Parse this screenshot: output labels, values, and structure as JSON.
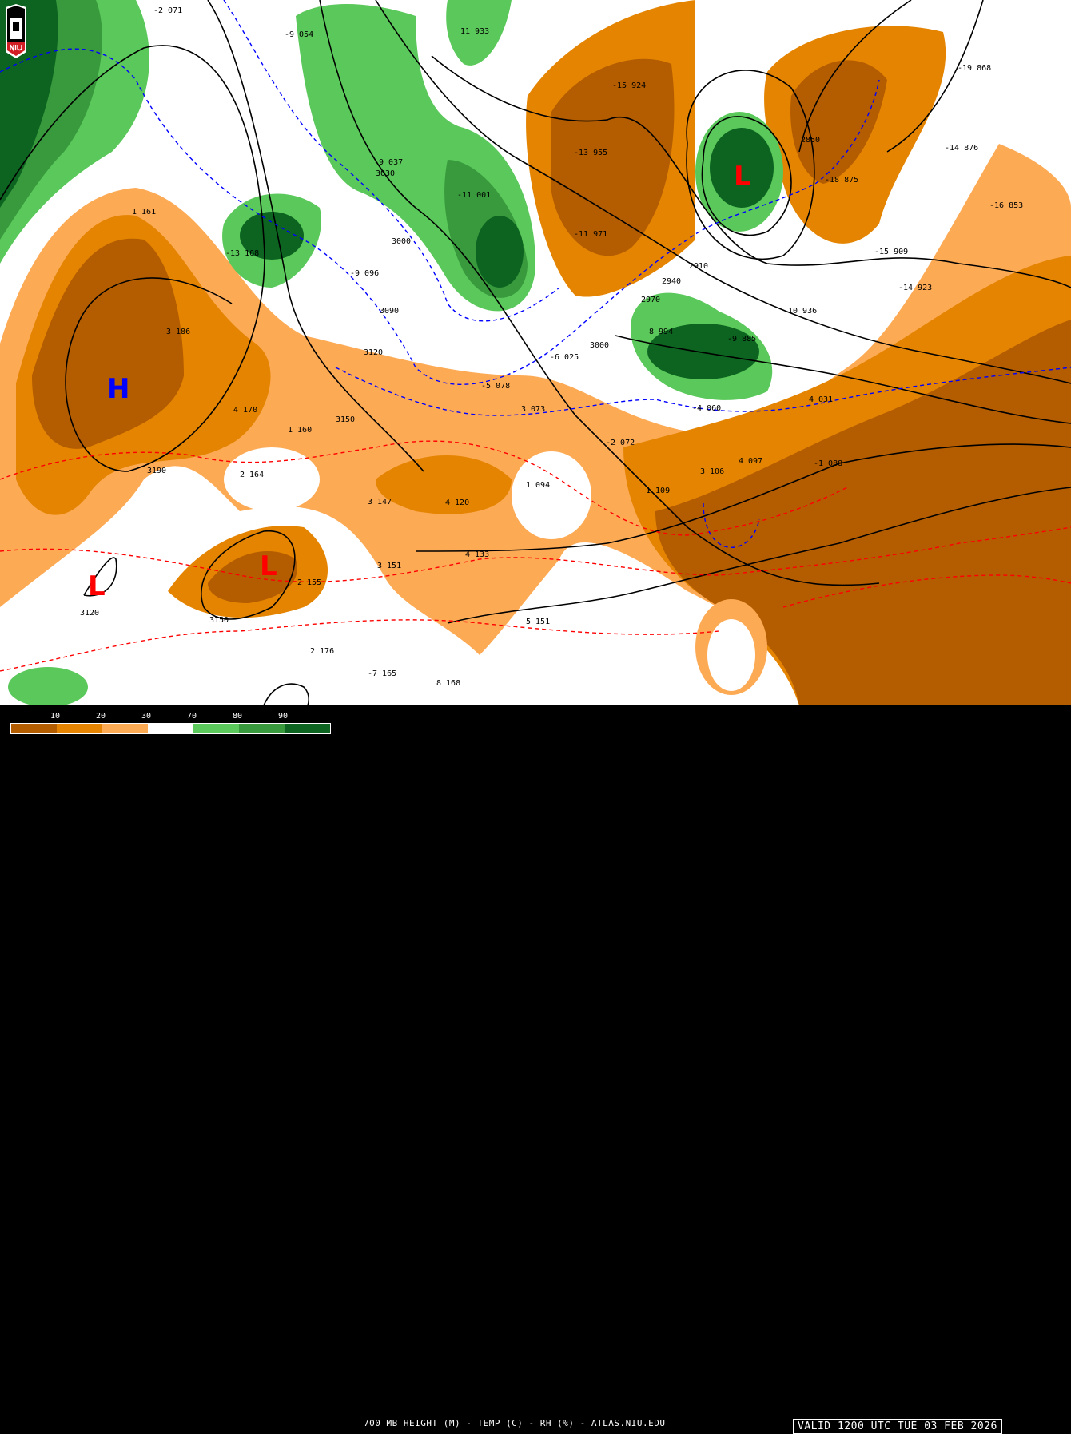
{
  "map": {
    "title": "700 MB HEIGHT (M) - TEMP (C) - RH (%) - ATLAS.NIU.EDU",
    "valid_time": "VALID 1200 UTC TUE 03 FEB 2026",
    "logo_text": "NIU",
    "colors": {
      "rh_10": "#b35c00",
      "rh_20": "#e48400",
      "rh_30": "#fdaa55",
      "rh_70": "#ffffff",
      "rh_80": "#5ac85a",
      "rh_90": "#389a3c",
      "rh_100": "#0c6420",
      "height_contour": "#000000",
      "temp_below_zero": "#0000ff",
      "temp_above_zero": "#ff0000",
      "high_marker": "#0000ff",
      "low_marker": "#ff0000"
    },
    "legend": {
      "labels": [
        "10",
        "20",
        "30",
        "70",
        "80",
        "90"
      ]
    },
    "pressure_centers": [
      {
        "type": "H",
        "label": "H"
      },
      {
        "type": "L",
        "label": "L"
      },
      {
        "type": "L",
        "label": "L"
      },
      {
        "type": "L",
        "label": "L"
      }
    ],
    "height_labels": [
      "3030",
      "3000",
      "3090",
      "3120",
      "3150",
      "3190",
      "3150",
      "3000",
      "2970",
      "2940",
      "2910",
      "2850",
      "3120"
    ],
    "station_labels": [
      "-9 037",
      "-11 001",
      "-13 955",
      "-15 924",
      "-11 971",
      "-18 875",
      "-19 868",
      "-14 876",
      "1 161",
      "3 186",
      "4 170",
      "1 160",
      "2 164",
      "3 147",
      "4 120",
      "4 133",
      "3 151",
      "5 151",
      "1 094",
      "-2 072",
      "1 109",
      "3 106",
      "4 097",
      "-1 088",
      "4 031",
      "-6 025",
      "-5 078",
      "3 073",
      "-4 060",
      "8 994",
      "-9 885",
      "10 936",
      "-13 168",
      "-9 096",
      "2 155",
      "8 168",
      "-7 165",
      "2 176",
      "-16 853",
      "-15 909",
      "-14 923",
      "-2 071",
      "-9 054",
      "11 933"
    ]
  }
}
